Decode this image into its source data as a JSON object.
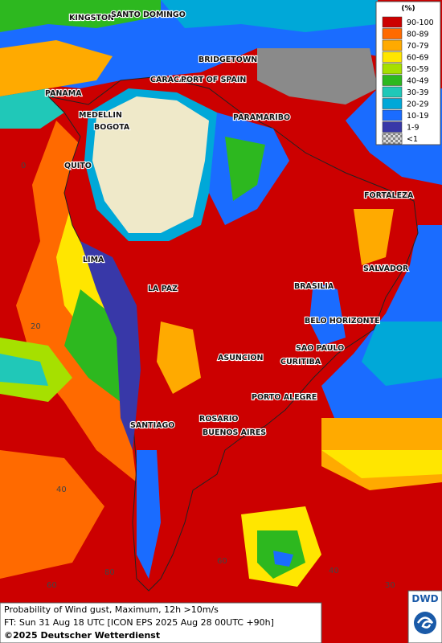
{
  "legend": {
    "unit": "(%)",
    "items": [
      {
        "label": "90-100",
        "color": "#cc0000"
      },
      {
        "label": "80-89",
        "color": "#ff6a00"
      },
      {
        "label": "70-79",
        "color": "#ffaa00"
      },
      {
        "label": "60-69",
        "color": "#ffe600"
      },
      {
        "label": "50-59",
        "color": "#a6e000"
      },
      {
        "label": "40-49",
        "color": "#2db81f"
      },
      {
        "label": "30-39",
        "color": "#20c8b8"
      },
      {
        "label": "20-29",
        "color": "#00a8d8"
      },
      {
        "label": "10-19",
        "color": "#1a6cff"
      },
      {
        "label": "1-9",
        "color": "#3838a8"
      },
      {
        "label": "<1",
        "color": "#b8b8b8"
      }
    ]
  },
  "cities": [
    "KINGSTON",
    "SANTO DOMINGO",
    "BRIDGETOWN",
    "CARACAS",
    "PORT OF SPAIN",
    "PANAMA",
    "MEDELLIN",
    "BOGOTA",
    "PARAMARIBO",
    "QUITO",
    "FORTALEZA",
    "LIMA",
    "SALVADOR",
    "LA PAZ",
    "BRASILIA",
    "BELO HORIZONTE",
    "SAO PAULO",
    "ASUNCION",
    "CURITIBA",
    "PORTO ALEGRE",
    "ROSARIO",
    "BUENOS AIRES",
    "SANTIAGO"
  ],
  "grid_labels": [
    "0",
    "20",
    "40",
    "60",
    "80",
    "60",
    "40",
    "30"
  ],
  "footer": {
    "line1": "Probability of Wind gust, Maximum, 12h >10m/s",
    "line2": "FT: Sun 31 Aug 18 UTC [ICON EPS 2025 Aug 28 00UTC +90h]",
    "copyright": "©2025 Deutscher Wetterdienst"
  },
  "logo": "DWD"
}
